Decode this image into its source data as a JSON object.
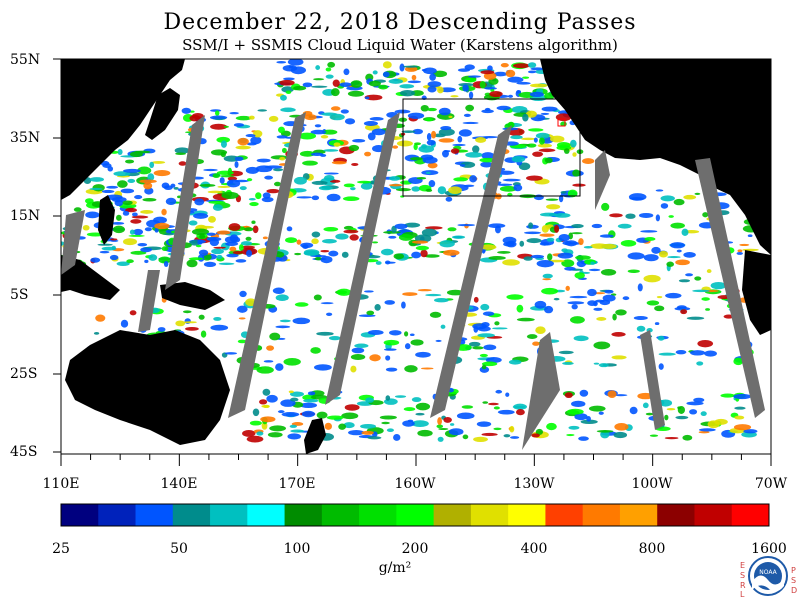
{
  "title": "December 22, 2018  Descending Passes",
  "subtitle": "SSM/I + SSMIS Cloud Liquid Water (Karstens algorithm)",
  "lat_labels": [
    "55N",
    "35N",
    "15N",
    "5S",
    "25S",
    "45S"
  ],
  "lon_labels": [
    "110E",
    "140E",
    "170E",
    "160W",
    "130W",
    "100W",
    "70W"
  ],
  "colorbar": {
    "colors": [
      "#00007f",
      "#0022bb",
      "#0055ff",
      "#008c8c",
      "#00c0c0",
      "#00ffff",
      "#008c00",
      "#00bb00",
      "#00e000",
      "#00ff00",
      "#b0b000",
      "#e0e000",
      "#ffff00",
      "#ff4000",
      "#ff7a00",
      "#ffa000",
      "#8c0000",
      "#c00000",
      "#ff0000"
    ],
    "labels": [
      "25",
      "50",
      "100",
      "200",
      "400",
      "800",
      "1600"
    ],
    "units": "g/m²"
  },
  "logo": {
    "left_letters": [
      "E",
      "S",
      "R",
      "L"
    ],
    "right_letters": [
      "P",
      "S",
      "D"
    ],
    "badge_text": "NOAA"
  },
  "colors": {
    "land": "#000000",
    "no_data_swath_gap": "#6e6e6e",
    "clear_ocean": "#ffffff"
  }
}
